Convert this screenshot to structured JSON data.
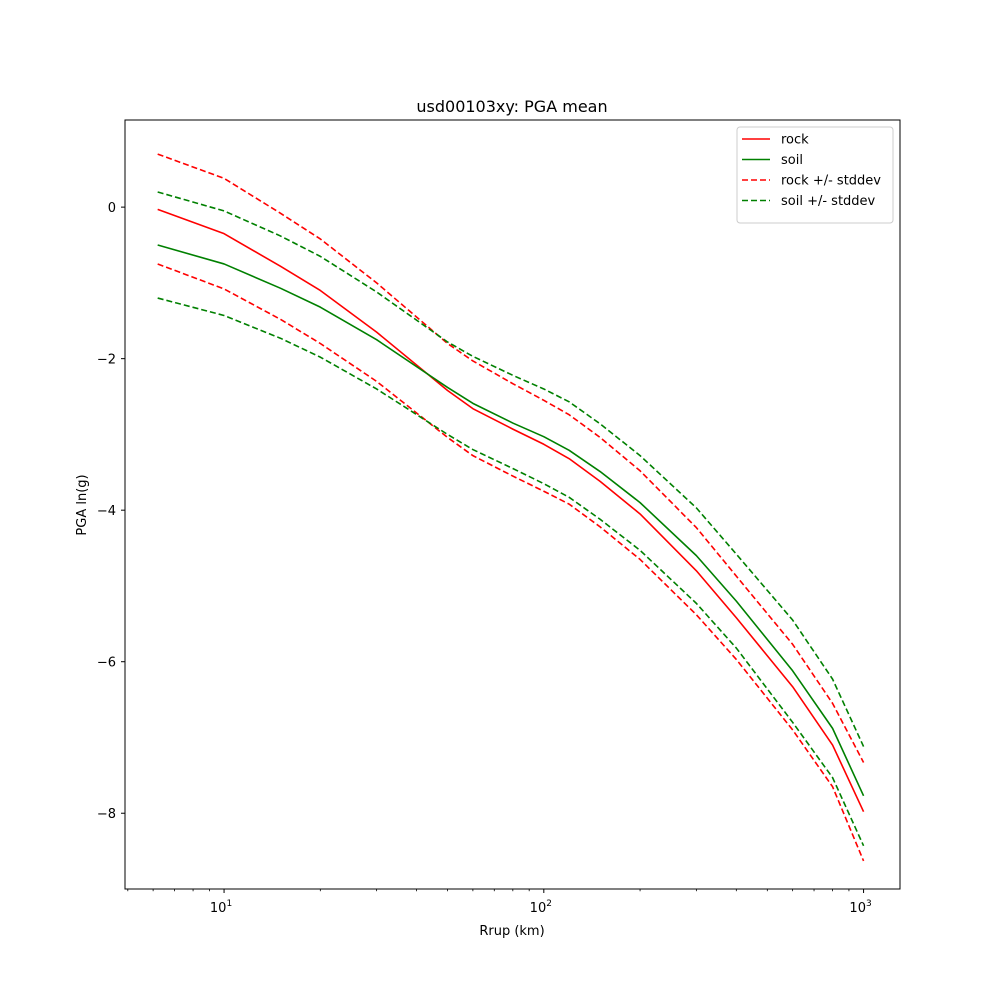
{
  "chart_data": {
    "type": "line",
    "title": "usd00103xy: PGA mean",
    "xlabel": "Rrup (km)",
    "ylabel": "PGA ln(g)",
    "xscale": "log",
    "xlim": [
      4.9,
      1300
    ],
    "ylim": [
      -9.0,
      1.15
    ],
    "xticks": [
      {
        "value": 10,
        "base": "10",
        "exp": "1"
      },
      {
        "value": 100,
        "base": "10",
        "exp": "2"
      },
      {
        "value": 1000,
        "base": "10",
        "exp": "3"
      }
    ],
    "yticks": [
      {
        "value": 0,
        "label": "0"
      },
      {
        "value": -2,
        "label": "−2"
      },
      {
        "value": -4,
        "label": "−4"
      },
      {
        "value": -6,
        "label": "−6"
      },
      {
        "value": -8,
        "label": "−8"
      }
    ],
    "grid": false,
    "legend_position": "top-right",
    "x": [
      6.2,
      10,
      15,
      20,
      30,
      50,
      60,
      80,
      100,
      120,
      150,
      200,
      300,
      400,
      600,
      800,
      1000
    ],
    "series": [
      {
        "name": "rock",
        "color": "#ff0000",
        "dash": false,
        "values": [
          -0.03,
          -0.35,
          -0.78,
          -1.1,
          -1.65,
          -2.42,
          -2.66,
          -2.93,
          -3.13,
          -3.32,
          -3.62,
          -4.05,
          -4.8,
          -5.42,
          -6.33,
          -7.1,
          -7.98
        ]
      },
      {
        "name": "soil",
        "color": "#008000",
        "dash": false,
        "values": [
          -0.5,
          -0.75,
          -1.07,
          -1.32,
          -1.75,
          -2.38,
          -2.59,
          -2.85,
          -3.03,
          -3.21,
          -3.49,
          -3.9,
          -4.6,
          -5.2,
          -6.12,
          -6.88,
          -7.77
        ]
      },
      {
        "name": "rock +/- stddev",
        "color": "#ff0000",
        "dash": true,
        "legend": true,
        "values": [
          0.7,
          0.38,
          -0.08,
          -0.42,
          -1.0,
          -1.8,
          -2.03,
          -2.33,
          -2.55,
          -2.74,
          -3.04,
          -3.48,
          -4.23,
          -4.87,
          -5.77,
          -6.55,
          -7.33
        ]
      },
      {
        "name": "",
        "color": "#ff0000",
        "dash": true,
        "legend": false,
        "values": [
          -0.75,
          -1.08,
          -1.48,
          -1.8,
          -2.3,
          -3.04,
          -3.28,
          -3.55,
          -3.75,
          -3.92,
          -4.22,
          -4.65,
          -5.38,
          -5.97,
          -6.9,
          -7.65,
          -8.63
        ]
      },
      {
        "name": "soil +/- stddev",
        "color": "#008000",
        "dash": true,
        "legend": true,
        "values": [
          0.2,
          -0.05,
          -0.38,
          -0.65,
          -1.12,
          -1.78,
          -1.97,
          -2.22,
          -2.4,
          -2.57,
          -2.86,
          -3.28,
          -3.97,
          -4.58,
          -5.45,
          -6.23,
          -7.12
        ]
      },
      {
        "name": "",
        "color": "#008000",
        "dash": true,
        "legend": false,
        "values": [
          -1.2,
          -1.43,
          -1.73,
          -1.98,
          -2.4,
          -3.0,
          -3.2,
          -3.45,
          -3.65,
          -3.83,
          -4.12,
          -4.53,
          -5.23,
          -5.82,
          -6.8,
          -7.53,
          -8.43
        ]
      }
    ]
  }
}
